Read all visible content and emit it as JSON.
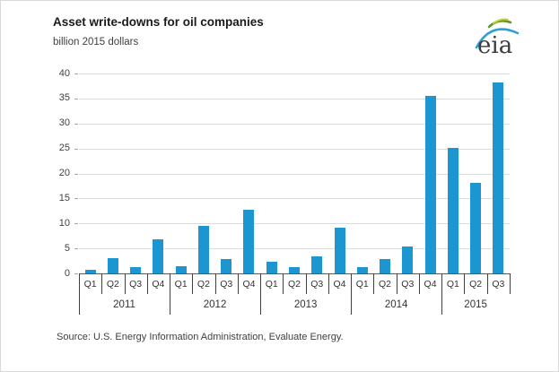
{
  "header": {
    "title": "Asset write-downs for oil companies",
    "subtitle": "billion 2015 dollars"
  },
  "logo": {
    "text": "eia",
    "colors": {
      "text": "#3d3d3d",
      "arc_blue": "#2a9fd8",
      "arc_green": "#5d9732",
      "arc_yellow": "#c9d22b"
    }
  },
  "chart_data": {
    "type": "bar",
    "title": "Asset write-downs for oil companies",
    "ylabel_units": "billion 2015 dollars",
    "ylim": [
      0,
      40
    ],
    "yticks": [
      0,
      5,
      10,
      15,
      20,
      25,
      30,
      35,
      40
    ],
    "grid": "horizontal",
    "bar_color": "#1b96d0",
    "groups": [
      {
        "year": "2011",
        "quarters": [
          "Q1",
          "Q2",
          "Q3",
          "Q4"
        ],
        "values": [
          0.8,
          3.0,
          1.3,
          6.8
        ]
      },
      {
        "year": "2012",
        "quarters": [
          "Q1",
          "Q2",
          "Q3",
          "Q4"
        ],
        "values": [
          1.5,
          9.5,
          2.9,
          12.7
        ]
      },
      {
        "year": "2013",
        "quarters": [
          "Q1",
          "Q2",
          "Q3",
          "Q4"
        ],
        "values": [
          2.3,
          1.2,
          3.4,
          9.2
        ]
      },
      {
        "year": "2014",
        "quarters": [
          "Q1",
          "Q2",
          "Q3",
          "Q4"
        ],
        "values": [
          1.3,
          2.9,
          5.4,
          35.6
        ]
      },
      {
        "year": "2015",
        "quarters": [
          "Q1",
          "Q2",
          "Q3"
        ],
        "values": [
          25.2,
          18.1,
          38.2
        ]
      }
    ]
  },
  "footer": {
    "source": "Source:  U.S. Energy Information Administration, Evaluate Energy."
  }
}
